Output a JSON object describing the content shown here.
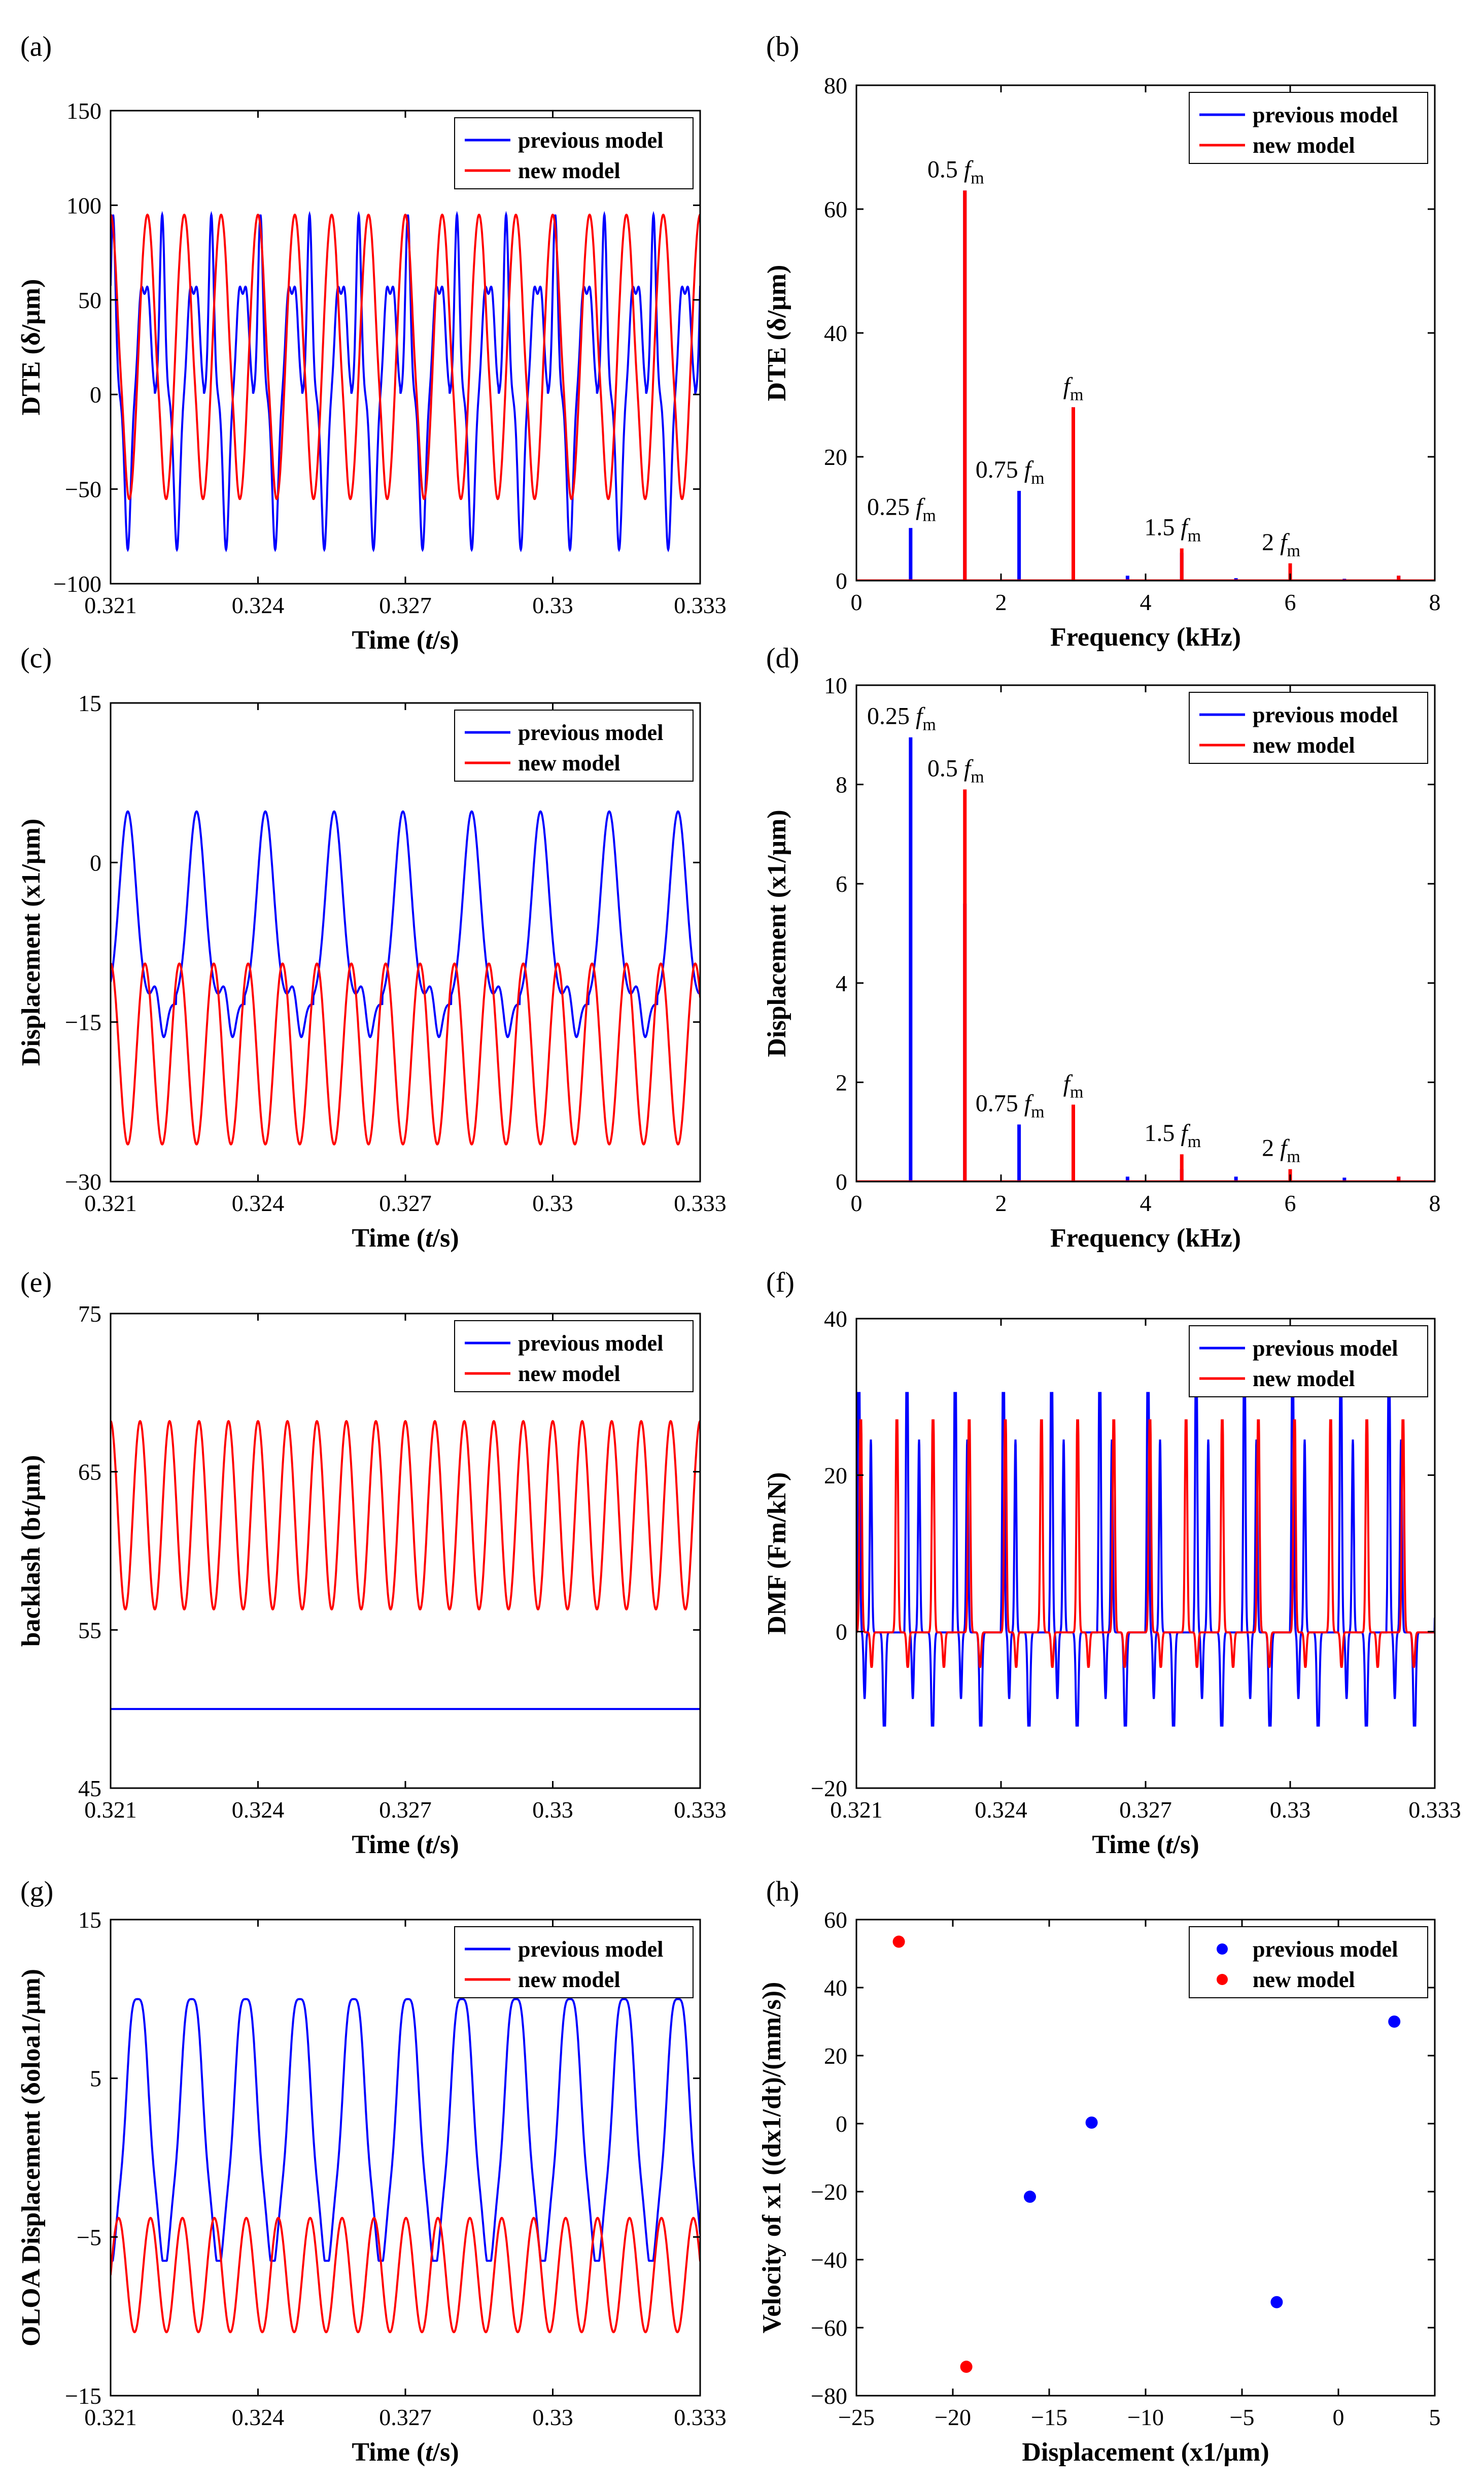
{
  "colors": {
    "previous": "#0000ff",
    "new": "#ff0000"
  },
  "chart_data": [
    {
      "id": "a",
      "panel_label": "(a)",
      "type": "line",
      "xlabel": "Time (t/s)",
      "xlabel_pre": "Time (",
      "xlabel_var": "t",
      "xlabel_post": "/s)",
      "ylabel": "DTE (δ/μm)",
      "xlim": [
        0.321,
        0.333
      ],
      "ylim": [
        -100,
        150
      ],
      "xticks": [
        0.321,
        0.324,
        0.327,
        0.33,
        0.333
      ],
      "xtick_labels": [
        "0.321",
        "0.324",
        "0.327",
        "0.33",
        "0.333"
      ],
      "yticks": [
        -100,
        -50,
        0,
        50,
        100,
        150
      ],
      "ytick_labels": [
        "−100",
        "−50",
        "0",
        "50",
        "100",
        "150"
      ],
      "legend": [
        "previous model",
        "new model"
      ],
      "series": [
        {
          "name": "previous model",
          "period": 0.001,
          "phase": 0.1,
          "min": -82,
          "max": 95,
          "shape": "dte_prev"
        },
        {
          "name": "new model",
          "period": 0.00075,
          "phase": 0.0,
          "min": -56,
          "max": 95,
          "shape": "dte_new"
        }
      ]
    },
    {
      "id": "b",
      "panel_label": "(b)",
      "type": "spectrum",
      "xlabel": "Frequency (kHz)",
      "ylabel": "DTE (δ/μm)",
      "xlim": [
        0,
        8
      ],
      "ylim": [
        0,
        80
      ],
      "xticks": [
        0,
        2,
        4,
        6,
        8
      ],
      "xtick_labels": [
        "0",
        "2",
        "4",
        "6",
        "8"
      ],
      "yticks": [
        0,
        20,
        40,
        60,
        80
      ],
      "ytick_labels": [
        "0",
        "20",
        "40",
        "60",
        "80"
      ],
      "legend": [
        "previous model",
        "new model"
      ],
      "series": [
        {
          "name": "previous model",
          "x": [
            0.75,
            1.5,
            2.25,
            3.0,
            3.75,
            4.5,
            5.25,
            6.0,
            6.75,
            7.5
          ],
          "y": [
            8.5,
            63,
            14.5,
            28,
            0.8,
            4.5,
            0.4,
            2.5,
            0.3,
            0.8
          ]
        },
        {
          "name": "new model",
          "x": [
            1.5,
            3.0,
            4.5,
            6.0,
            7.5
          ],
          "y": [
            63,
            28,
            5.2,
            2.8,
            0.8
          ]
        }
      ],
      "annotations": [
        {
          "coef": "0.25",
          "var": "f",
          "sub": "m",
          "x": 0.75,
          "y": 8.5
        },
        {
          "coef": "0.5",
          "var": "f",
          "sub": "m",
          "x": 1.5,
          "y": 63
        },
        {
          "coef": "0.75",
          "var": "f",
          "sub": "m",
          "x": 2.25,
          "y": 14.5
        },
        {
          "coef": "",
          "var": "f",
          "sub": "m",
          "x": 3.0,
          "y": 28
        },
        {
          "coef": "1.5",
          "var": "f",
          "sub": "m",
          "x": 4.5,
          "y": 5.2
        },
        {
          "coef": "2",
          "var": "f",
          "sub": "m",
          "x": 6.0,
          "y": 2.8
        }
      ]
    },
    {
      "id": "c",
      "panel_label": "(c)",
      "type": "line",
      "xlabel": "Time (t/s)",
      "xlabel_pre": "Time (",
      "xlabel_var": "t",
      "xlabel_post": "/s)",
      "ylabel": "Displacement (x1/μm)",
      "xlim": [
        0.321,
        0.333
      ],
      "ylim": [
        -30,
        15
      ],
      "xticks": [
        0.321,
        0.324,
        0.327,
        0.33,
        0.333
      ],
      "xtick_labels": [
        "0.321",
        "0.324",
        "0.327",
        "0.33",
        "0.333"
      ],
      "yticks": [
        -30,
        -15,
        0,
        15
      ],
      "ytick_labels": [
        "−30",
        "−15",
        "0",
        "15"
      ],
      "legend": [
        "previous model",
        "new model"
      ],
      "series": [
        {
          "name": "previous model",
          "period": 0.0014,
          "phase": 0.05,
          "min": -16.5,
          "max": 4.8,
          "shape": "disp_prev"
        },
        {
          "name": "new model",
          "period": 0.0007,
          "phase": 0.0,
          "min": -26.5,
          "max": -9.5,
          "shape": "sine"
        }
      ]
    },
    {
      "id": "d",
      "panel_label": "(d)",
      "type": "spectrum",
      "xlabel": "Frequency (kHz)",
      "ylabel": "Displacement (x1/μm)",
      "xlim": [
        0,
        8
      ],
      "ylim": [
        0,
        10
      ],
      "xticks": [
        0,
        2,
        4,
        6,
        8
      ],
      "xtick_labels": [
        "0",
        "2",
        "4",
        "6",
        "8"
      ],
      "yticks": [
        0,
        2,
        4,
        6,
        8,
        10
      ],
      "ytick_labels": [
        "0",
        "2",
        "4",
        "6",
        "8",
        "10"
      ],
      "legend": [
        "previous model",
        "new model"
      ],
      "series": [
        {
          "name": "previous model",
          "x": [
            0.75,
            1.5,
            2.25,
            3.0,
            3.75,
            4.5,
            5.25,
            6.0,
            6.75,
            7.5
          ],
          "y": [
            8.95,
            5.6,
            1.15,
            0.6,
            0.1,
            0.25,
            0.1,
            0.2,
            0.08,
            0.1
          ]
        },
        {
          "name": "new model",
          "x": [
            1.5,
            3.0,
            4.5,
            6.0,
            7.5
          ],
          "y": [
            7.9,
            1.55,
            0.55,
            0.25,
            0.1
          ]
        }
      ],
      "annotations": [
        {
          "coef": "0.25",
          "var": "f",
          "sub": "m",
          "x": 0.75,
          "y": 8.95
        },
        {
          "coef": "0.5",
          "var": "f",
          "sub": "m",
          "x": 1.5,
          "y": 7.9
        },
        {
          "coef": "0.75",
          "var": "f",
          "sub": "m",
          "x": 2.25,
          "y": 1.15
        },
        {
          "coef": "",
          "var": "f",
          "sub": "m",
          "x": 3.0,
          "y": 1.55
        },
        {
          "coef": "1.5",
          "var": "f",
          "sub": "m",
          "x": 4.5,
          "y": 0.55
        },
        {
          "coef": "2",
          "var": "f",
          "sub": "m",
          "x": 6.0,
          "y": 0.25
        }
      ]
    },
    {
      "id": "e",
      "panel_label": "(e)",
      "type": "line",
      "xlabel": "Time (t/s)",
      "xlabel_pre": "Time (",
      "xlabel_var": "t",
      "xlabel_post": "/s)",
      "ylabel": "backlash (bt/μm)",
      "xlim": [
        0.321,
        0.333
      ],
      "ylim": [
        45,
        75
      ],
      "xticks": [
        0.321,
        0.324,
        0.327,
        0.33,
        0.333
      ],
      "xtick_labels": [
        "0.321",
        "0.324",
        "0.327",
        "0.33",
        "0.333"
      ],
      "yticks": [
        45,
        55,
        65,
        75
      ],
      "ytick_labels": [
        "45",
        "55",
        "65",
        "75"
      ],
      "legend": [
        "previous model",
        "new model"
      ],
      "series": [
        {
          "name": "previous model",
          "constant": 50
        },
        {
          "name": "new model",
          "period": 0.0006,
          "phase": 0.0,
          "min": 56.3,
          "max": 68.2,
          "shape": "sine"
        }
      ]
    },
    {
      "id": "f",
      "panel_label": "(f)",
      "type": "line",
      "xlabel": "Time (t/s)",
      "xlabel_pre": "Time (",
      "xlabel_var": "t",
      "xlabel_post": "/s)",
      "ylabel": "DMF (Fm/kN)",
      "xlim": [
        0.321,
        0.333
      ],
      "ylim": [
        -20,
        40
      ],
      "xticks": [
        0.321,
        0.324,
        0.327,
        0.33,
        0.333
      ],
      "xtick_labels": [
        "0.321",
        "0.324",
        "0.327",
        "0.33",
        "0.333"
      ],
      "yticks": [
        -20,
        0,
        20,
        40
      ],
      "ytick_labels": [
        "−20",
        "0",
        "20",
        "40"
      ],
      "legend": [
        "previous model",
        "new model"
      ],
      "series": [
        {
          "name": "previous model",
          "period": 0.001,
          "phase": 0.0,
          "min": -12,
          "max": 30.5,
          "shape": "dmf_prev"
        },
        {
          "name": "new model",
          "period": 0.00075,
          "phase": 0.08,
          "min": -4.5,
          "max": 27,
          "shape": "dmf_new"
        }
      ]
    },
    {
      "id": "g",
      "panel_label": "(g)",
      "type": "line",
      "xlabel": "Time (t/s)",
      "xlabel_pre": "Time (",
      "xlabel_var": "t",
      "xlabel_post": "/s)",
      "ylabel": "OLOA Displacement (δoloa1/μm)",
      "xlim": [
        0.321,
        0.333
      ],
      "ylim": [
        -15,
        15
      ],
      "xticks": [
        0.321,
        0.324,
        0.327,
        0.33,
        0.333
      ],
      "xtick_labels": [
        "0.321",
        "0.324",
        "0.327",
        "0.33",
        "0.333"
      ],
      "yticks": [
        -15,
        -5,
        5,
        15
      ],
      "ytick_labels": [
        "−15",
        "−5",
        "5",
        "15"
      ],
      "legend": [
        "previous model",
        "new model"
      ],
      "series": [
        {
          "name": "previous model",
          "period": 0.0011,
          "phase": 0.75,
          "min": -6.5,
          "max": 10.5,
          "shape": "olo_prev"
        },
        {
          "name": "new model",
          "period": 0.00065,
          "phase": 0.75,
          "min": -11,
          "max": -3.8,
          "shape": "sine"
        }
      ]
    },
    {
      "id": "h",
      "panel_label": "(h)",
      "type": "scatter",
      "xlabel": "Displacement (x1/μm)",
      "ylabel": "Velocity of x1 ((dx1/dt)/(mm/s))",
      "xlim": [
        -25,
        5
      ],
      "ylim": [
        -80,
        60
      ],
      "xticks": [
        -25,
        -20,
        -15,
        -10,
        -5,
        0,
        5
      ],
      "xtick_labels": [
        "−25",
        "−20",
        "−15",
        "−10",
        "−5",
        "0",
        "5"
      ],
      "yticks": [
        -80,
        -60,
        -40,
        -20,
        0,
        20,
        40,
        60
      ],
      "ytick_labels": [
        "−80",
        "−60",
        "−40",
        "−20",
        "0",
        "20",
        "40",
        "60"
      ],
      "legend": [
        "previous model",
        "new model"
      ],
      "series": [
        {
          "name": "previous model",
          "points": [
            [
              -16,
              -21.5
            ],
            [
              -12.8,
              0.3
            ],
            [
              -3.2,
              -52.5
            ],
            [
              2.9,
              30
            ]
          ]
        },
        {
          "name": "new model",
          "points": [
            [
              -22.8,
              53.5
            ],
            [
              -19.3,
              -71.5
            ]
          ]
        }
      ]
    }
  ]
}
